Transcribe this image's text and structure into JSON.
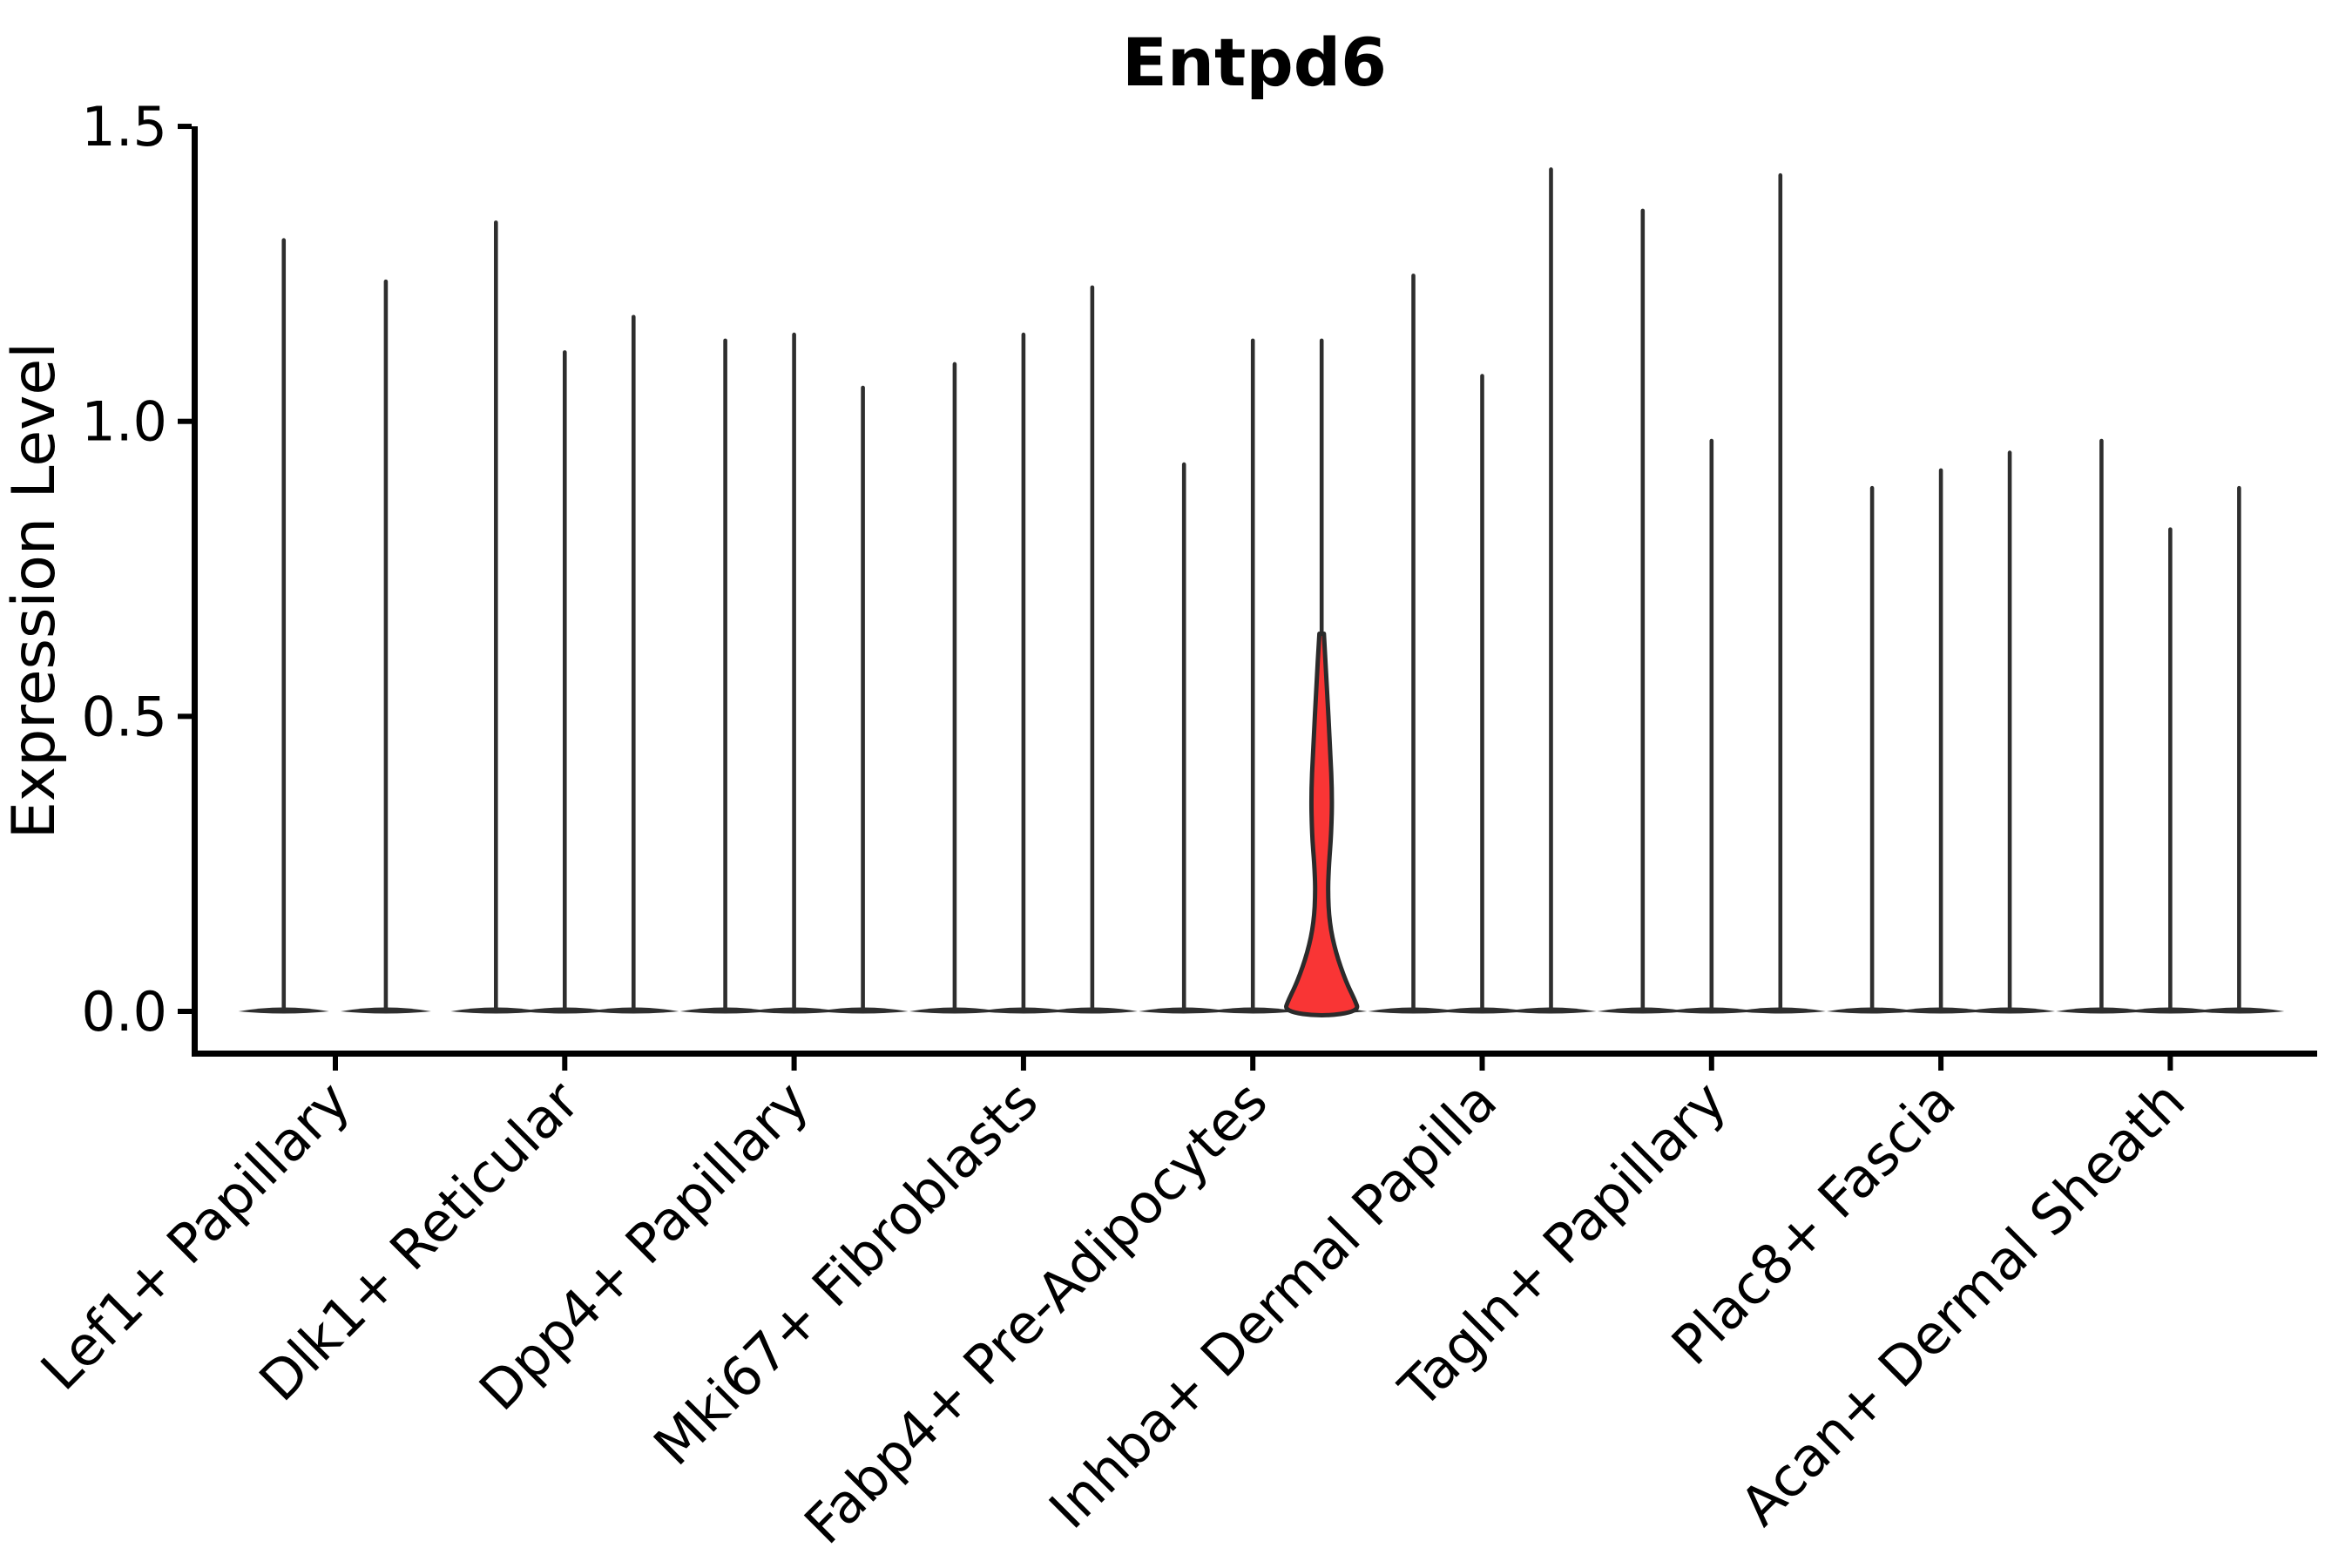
{
  "title": "Entpd6",
  "chart_data": {
    "type": "violin",
    "title": "Entpd6",
    "xlabel": "",
    "ylabel": "Expression Level",
    "ytick_labels": [
      "0.0",
      "0.5",
      "1.0",
      "1.5"
    ],
    "ytick_values": [
      0.0,
      0.5,
      1.0,
      1.5
    ],
    "ylim": [
      -0.07,
      1.5
    ],
    "grid": false,
    "legend": "none",
    "violin_color": "#2e2e2e",
    "highlight_color": "#f93535",
    "outline_color": "#2b2b2b",
    "categories": [
      "Lef1+ Papillary",
      "Dlk1+ Reticular",
      "Dpp4+ Papillary",
      "Mki67+ Fibroblasts",
      "Fabp4+ Pre-Adipocytes",
      "Inhba+ Dermal Papilla",
      "Tagln+ Papillary",
      "Plac8+ Fascia",
      "Acan+ Dermal Sheath"
    ],
    "groups": [
      {
        "label": "Lef1+ Papillary",
        "violins": [
          {
            "dx": -0.225,
            "max": 1.31
          },
          {
            "dx": 0.22,
            "max": 1.24
          }
        ]
      },
      {
        "label": "Dlk1+ Reticular",
        "violins": [
          {
            "dx": -0.3,
            "max": 1.34
          },
          {
            "dx": 0,
            "max": 1.12
          },
          {
            "dx": 0.3,
            "max": 1.18
          }
        ]
      },
      {
        "label": "Dpp4+ Papillary",
        "violins": [
          {
            "dx": -0.3,
            "max": 1.14
          },
          {
            "dx": 0,
            "max": 1.15
          },
          {
            "dx": 0.3,
            "max": 1.06
          }
        ]
      },
      {
        "label": "Mki67+ Fibroblasts",
        "violins": [
          {
            "dx": -0.3,
            "max": 1.1
          },
          {
            "dx": 0,
            "max": 1.15
          },
          {
            "dx": 0.3,
            "max": 1.23
          }
        ]
      },
      {
        "label": "Fabp4+ Pre-Adipocytes",
        "violins": [
          {
            "dx": -0.3,
            "max": 0.93
          },
          {
            "dx": 0,
            "max": 1.14
          },
          {
            "dx": 0.3,
            "max": 1.14,
            "highlight": true
          }
        ]
      },
      {
        "label": "Inhba+ Dermal Papilla",
        "violins": [
          {
            "dx": -0.3,
            "max": 1.25
          },
          {
            "dx": 0,
            "max": 1.08
          },
          {
            "dx": 0.3,
            "max": 1.43
          }
        ]
      },
      {
        "label": "Tagln+ Papillary",
        "violins": [
          {
            "dx": -0.3,
            "max": 1.36
          },
          {
            "dx": 0,
            "max": 0.97
          },
          {
            "dx": 0.3,
            "max": 1.42
          }
        ]
      },
      {
        "label": "Plac8+ Fascia",
        "violins": [
          {
            "dx": -0.3,
            "max": 0.89
          },
          {
            "dx": 0,
            "max": 0.92
          },
          {
            "dx": 0.3,
            "max": 0.95
          }
        ]
      },
      {
        "label": "Acan+ Dermal Sheath",
        "violins": [
          {
            "dx": -0.3,
            "max": 0.97
          },
          {
            "dx": 0,
            "max": 0.82
          },
          {
            "dx": 0.3,
            "max": 0.89
          }
        ]
      }
    ],
    "highlight_profile": [
      [
        0.64,
        0.01
      ],
      [
        0.55,
        0.023
      ],
      [
        0.45,
        0.036
      ],
      [
        0.37,
        0.046
      ],
      [
        0.3,
        0.042
      ],
      [
        0.25,
        0.032
      ],
      [
        0.205,
        0.027
      ],
      [
        0.15,
        0.034
      ],
      [
        0.1,
        0.061
      ],
      [
        0.05,
        0.106
      ],
      [
        0.02,
        0.144
      ],
      [
        0.0,
        0.163
      ]
    ]
  }
}
